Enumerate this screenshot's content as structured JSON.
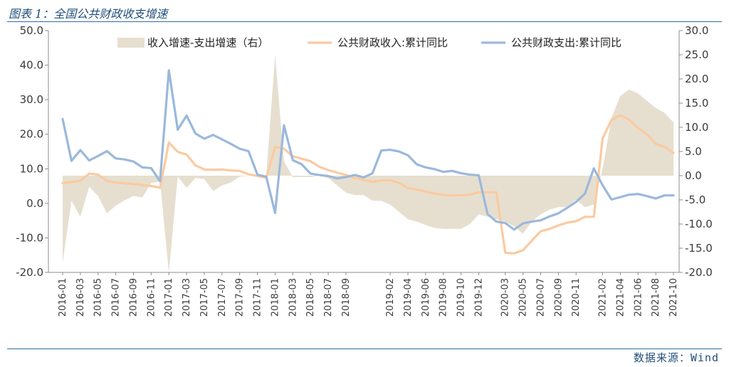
{
  "header": {
    "title": "图表 1：全国公共财政收支增速"
  },
  "source": "数据来源：Wind",
  "colors": {
    "area": "#e6dfcf",
    "income": "#fbcaa0",
    "expense": "#9bb8dc",
    "rule": "#2f6ea7",
    "title": "#1f4e79"
  },
  "chart_data": {
    "type": "line",
    "x": [
      "2016-01",
      "2016-02",
      "2016-03",
      "2016-04",
      "2016-05",
      "2016-06",
      "2016-07",
      "2016-08",
      "2016-09",
      "2016-10",
      "2016-11",
      "2016-12",
      "2017-01",
      "2017-02",
      "2017-03",
      "2017-04",
      "2017-05",
      "2017-06",
      "2017-07",
      "2017-08",
      "2017-09",
      "2017-10",
      "2017-11",
      "2017-12",
      "2018-01",
      "2018-02",
      "2018-03",
      "2018-04",
      "2018-05",
      "2018-06",
      "2018-07",
      "2018-08",
      "2018-09",
      "2018-10",
      "2018-11",
      "2018-12",
      "2019-01",
      "2019-02",
      "2019-03",
      "2019-04",
      "2019-05",
      "2019-06",
      "2019-07",
      "2019-08",
      "2019-09",
      "2019-10",
      "2019-11",
      "2019-12",
      "2020-01",
      "2020-02",
      "2020-03",
      "2020-04",
      "2020-05",
      "2020-06",
      "2020-07",
      "2020-08",
      "2020-09",
      "2020-10",
      "2020-11",
      "2020-12",
      "2021-01",
      "2021-02",
      "2021-03",
      "2021-04",
      "2021-05",
      "2021-06",
      "2021-07",
      "2021-08",
      "2021-09",
      "2021-10"
    ],
    "xticks": [
      "2016-01",
      "2016-03",
      "2016-05",
      "2016-07",
      "2016-09",
      "2016-11",
      "2017-01",
      "2017-03",
      "2017-05",
      "2017-07",
      "2017-09",
      "2017-11",
      "2018-01",
      "2018-03",
      "2018-05",
      "2018-07",
      "2018-09",
      "2019-02",
      "2019-04",
      "2019-06",
      "2019-08",
      "2019-10",
      "2019-12",
      "2020-03",
      "2020-05",
      "2020-07",
      "2020-09",
      "2020-11",
      "2021-02",
      "2021-04",
      "2021-06",
      "2021-08",
      "2021-10"
    ],
    "left_axis": {
      "ylim": [
        -20,
        50
      ],
      "ticks": [
        "-20.0",
        "-10.0",
        "0.0",
        "10.0",
        "20.0",
        "30.0",
        "40.0",
        "50.0"
      ]
    },
    "right_axis": {
      "ylim": [
        -20,
        30
      ],
      "ticks": [
        "-20.0",
        "-15.0",
        "-10.0",
        "-5.0",
        "0.0",
        "5.0",
        "10.0",
        "15.0",
        "20.0",
        "25.0",
        "30.0"
      ]
    },
    "series": [
      {
        "name": "收入增速-支出增速（右）",
        "type": "area",
        "axis": "right",
        "values": [
          -18,
          -5.2,
          -8.5,
          -2.3,
          -4.2,
          -7.8,
          -6.2,
          -5.1,
          -4.2,
          -4.5,
          -1.5,
          -1.2,
          -20,
          -0.2,
          -2.5,
          -0.5,
          -0.7,
          -3.2,
          -2.0,
          -1.4,
          -0.2,
          0,
          0,
          0,
          25,
          3,
          -0.3,
          -0.3,
          -0.3,
          0,
          -0.5,
          -2.0,
          -3.5,
          -4.0,
          -4.0,
          -5.2,
          -5.2,
          -6.0,
          -7.5,
          -9.0,
          -9.5,
          -10.2,
          -10.8,
          -11.0,
          -11.0,
          -11.0,
          -10.0,
          -8.0,
          -8.5,
          -9.0,
          -9.5,
          -10.5,
          -12.0,
          -9.5,
          -8.0,
          -7.0,
          -6.5,
          -6.5,
          -5.0,
          -6.5,
          -6.0,
          1.5,
          12.0,
          16.5,
          17.8,
          17.0,
          15.5,
          14.0,
          13.0,
          11.0
        ]
      },
      {
        "name": "公共财政收入:累计同比",
        "type": "line",
        "axis": "left",
        "values": [
          5.9,
          6.1,
          6.5,
          8.6,
          8.3,
          6.5,
          6.0,
          5.8,
          5.6,
          5.3,
          5.0,
          4.5,
          17.6,
          14.9,
          14.1,
          11.0,
          9.8,
          9.7,
          9.8,
          9.5,
          9.4,
          8.4,
          7.9,
          7.4,
          16.3,
          15.8,
          13.6,
          12.9,
          12.2,
          10.6,
          9.6,
          8.9,
          8.2,
          7.3,
          6.8,
          6.2,
          6.6,
          6.7,
          5.9,
          4.4,
          4.0,
          3.4,
          2.8,
          2.4,
          2.3,
          2.3,
          2.5,
          3.2,
          3.2,
          3.2,
          -14.3,
          -14.5,
          -13.6,
          -10.8,
          -8.1,
          -7.4,
          -6.4,
          -5.6,
          -5.2,
          -3.9,
          -3.9,
          18.8,
          24.2,
          25.5,
          24.2,
          21.8,
          20.0,
          17.2,
          16.3,
          14.6
        ]
      },
      {
        "name": "公共财政支出:累计同比",
        "type": "line",
        "axis": "left",
        "values": [
          24.4,
          12.3,
          15.4,
          12.4,
          13.7,
          15.1,
          13.0,
          12.7,
          12.1,
          10.4,
          10.2,
          6.4,
          38.5,
          21.3,
          25.4,
          20.2,
          18.7,
          19.8,
          18.5,
          17.2,
          15.8,
          15.1,
          8.3,
          7.7,
          -2.8,
          22.6,
          12.5,
          11.3,
          8.6,
          8.2,
          7.9,
          7.2,
          7.6,
          8.2,
          7.5,
          8.7,
          15.3,
          15.5,
          15.0,
          13.9,
          11.3,
          10.4,
          9.9,
          9.1,
          9.4,
          8.7,
          8.3,
          8.1,
          -3.1,
          -5.3,
          -5.7,
          -7.6,
          -5.8,
          -5.3,
          -4.9,
          -3.8,
          -2.9,
          -1.3,
          0.4,
          2.8,
          10.1,
          5.2,
          1.1,
          1.8,
          2.5,
          2.7,
          2.1,
          1.4,
          2.3,
          2.3
        ]
      }
    ],
    "legend_position": "top",
    "grid": false
  }
}
